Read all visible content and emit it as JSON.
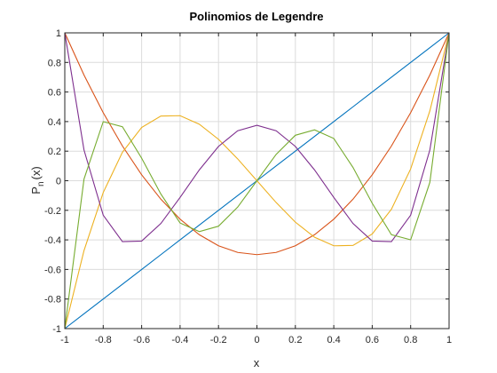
{
  "chart_data": {
    "type": "line",
    "title": "Polinomios de Legendre",
    "xlabel": "x",
    "ylabel_main": "P",
    "ylabel_sub": "n",
    "ylabel_tail": "(x)",
    "xlim": [
      -1,
      1
    ],
    "ylim": [
      -1,
      1
    ],
    "grid": true,
    "box": true,
    "xticks": [
      -1,
      -0.8,
      -0.6,
      -0.4,
      -0.2,
      0,
      0.2,
      0.4,
      0.6,
      0.8,
      1
    ],
    "yticks": [
      -1,
      -0.8,
      -0.6,
      -0.4,
      -0.2,
      0,
      0.2,
      0.4,
      0.6,
      0.8,
      1
    ],
    "xtick_labels": [
      "-1",
      "-0.8",
      "-0.6",
      "-0.4",
      "-0.2",
      "0",
      "0.2",
      "0.4",
      "0.6",
      "0.8",
      "1"
    ],
    "ytick_labels": [
      "-1",
      "-0.8",
      "-0.6",
      "-0.4",
      "-0.2",
      "0",
      "0.2",
      "0.4",
      "0.6",
      "0.8",
      "1"
    ],
    "x": [
      -1,
      -0.9,
      -0.8,
      -0.7,
      -0.6,
      -0.5,
      -0.4,
      -0.3,
      -0.2,
      -0.1,
      0,
      0.1,
      0.2,
      0.3,
      0.4,
      0.5,
      0.6,
      0.7,
      0.8,
      0.9,
      1
    ],
    "series": [
      {
        "color": "#0072BD",
        "values": [
          -1,
          -0.9,
          -0.8,
          -0.7,
          -0.6,
          -0.5,
          -0.4,
          -0.3,
          -0.2,
          -0.1,
          0,
          0.1,
          0.2,
          0.3,
          0.4,
          0.5,
          0.6,
          0.7,
          0.8,
          0.9,
          1
        ]
      },
      {
        "color": "#D95319",
        "values": [
          1,
          0.715,
          0.46,
          0.235,
          0.04,
          -0.125,
          -0.26,
          -0.365,
          -0.44,
          -0.485,
          -0.5,
          -0.485,
          -0.44,
          -0.365,
          -0.26,
          -0.125,
          0.04,
          0.235,
          0.46,
          0.715,
          1
        ]
      },
      {
        "color": "#EDB120",
        "values": [
          -1,
          -0.4725,
          -0.08,
          0.1925,
          0.36,
          0.4375,
          0.44,
          0.3825,
          0.28,
          0.1475,
          0,
          -0.1475,
          -0.28,
          -0.3825,
          -0.44,
          -0.4375,
          -0.36,
          -0.1925,
          0.08,
          0.4725,
          1
        ]
      },
      {
        "color": "#7E2F8E",
        "values": [
          1,
          0.2079,
          -0.233,
          -0.4121,
          -0.408,
          -0.2891,
          -0.113,
          0.0729,
          0.232,
          0.3379,
          0.375,
          0.3379,
          0.232,
          0.0729,
          -0.113,
          -0.2891,
          -0.408,
          -0.4121,
          -0.233,
          0.2079,
          1
        ]
      },
      {
        "color": "#77AC30",
        "values": [
          -1,
          0.0112,
          0.3995,
          0.3651,
          0.1526,
          -0.0898,
          -0.2857,
          -0.3441,
          -0.3075,
          -0.1781,
          0,
          0.1781,
          0.3075,
          0.3441,
          0.2857,
          0.0898,
          -0.1526,
          -0.3651,
          -0.3995,
          -0.0112,
          1
        ]
      }
    ]
  }
}
